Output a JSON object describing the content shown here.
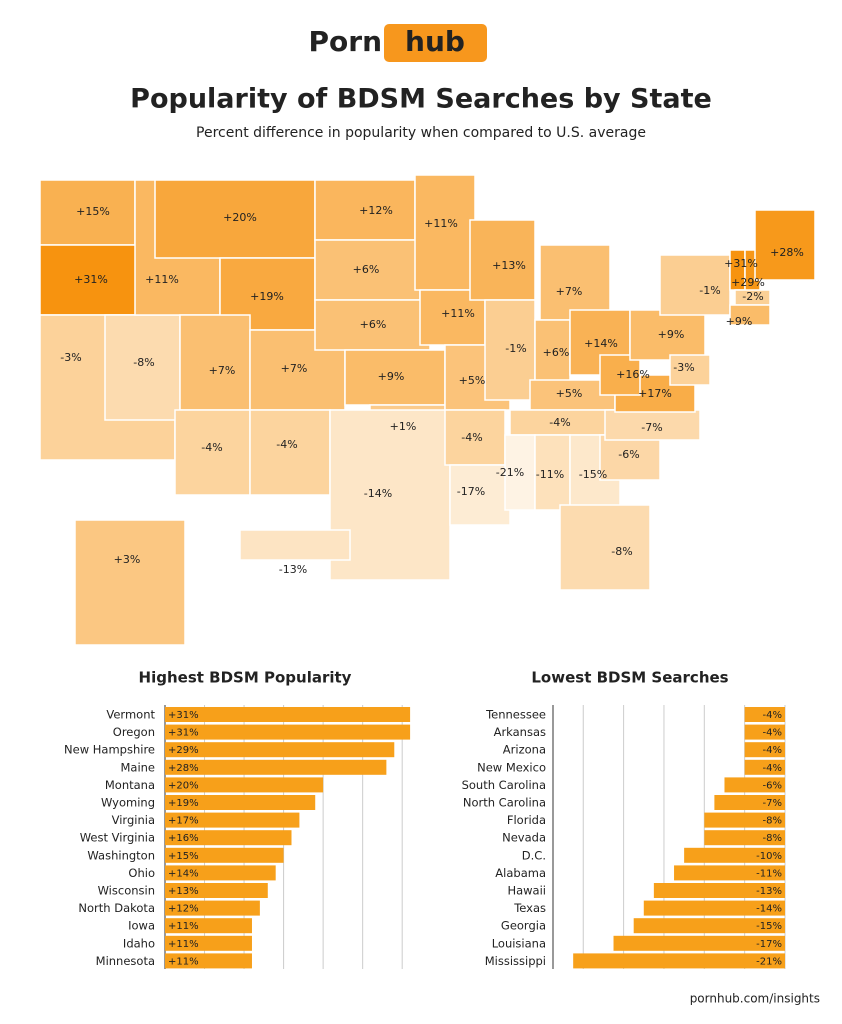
{
  "header": {
    "logo_left": "Porn",
    "logo_right": "hub",
    "title": "Popularity of BDSM Searches by State",
    "subtitle": "Percent difference in popularity when compared to U.S. average"
  },
  "chart_data": [
    {
      "type": "map",
      "values": [
        15,
        31,
        -3,
        -8,
        11,
        20,
        19,
        7,
        7,
        -4,
        -4,
        12,
        6,
        6,
        9,
        1,
        -14,
        11,
        11,
        5,
        -4,
        -17,
        13,
        -1,
        7,
        6,
        14,
        5,
        -4,
        -21,
        -11,
        -15,
        -8,
        -6,
        -7,
        17,
        16,
        9,
        -1,
        31,
        29,
        28,
        -2,
        9,
        -3,
        3,
        -13
      ],
      "value_labels": [
        "+15%",
        "+31%",
        "-3%",
        "-8%",
        "+11%",
        "+20%",
        "+19%",
        "+7%",
        "+7%",
        "-4%",
        "-4%",
        "+12%",
        "+6%",
        "+6%",
        "+9%",
        "+1%",
        "-14%",
        "+11%",
        "+11%",
        "+5%",
        "-4%",
        "-17%",
        "+13%",
        "-1%",
        "+7%",
        "+6%",
        "+14%",
        "+5%",
        "-4%",
        "-21%",
        "-11%",
        "-15%",
        "-8%",
        "-6%",
        "-7%",
        "+17%",
        "+16%",
        "+9%",
        "-1%",
        "+31%",
        "+29%",
        "+28%",
        "-2%",
        "+9%",
        "-3%",
        "+3%",
        "-13%"
      ],
      "color_low": "#fef3e4",
      "color_high": "#f7930f"
    },
    {
      "type": "bar",
      "title": "Highest BDSM Popularity",
      "categories": [
        "Vermont",
        "Oregon",
        "New Hampshire",
        "Maine",
        "Montana",
        "Wyoming",
        "Virginia",
        "West Virginia",
        "Washington",
        "Ohio",
        "Wisconsin",
        "North Dakota",
        "Iowa",
        "Idaho",
        "Minnesota"
      ],
      "values": [
        31,
        31,
        29,
        28,
        20,
        19,
        17,
        16,
        15,
        14,
        13,
        12,
        11,
        11,
        11
      ],
      "value_labels": [
        "+31%",
        "+31%",
        "+29%",
        "+28%",
        "+20%",
        "+19%",
        "+17%",
        "+16%",
        "+15%",
        "+14%",
        "+13%",
        "+12%",
        "+11%",
        "+11%",
        "+11%"
      ],
      "color": "#f7a01a",
      "xlim": [
        0,
        32
      ],
      "xticks": [
        0,
        5,
        10,
        15,
        20,
        25,
        30
      ],
      "grid": true
    },
    {
      "type": "bar",
      "title": "Lowest BDSM Searches",
      "categories": [
        "Tennessee",
        "Arkansas",
        "Arizona",
        "New Mexico",
        "South Carolina",
        "North Carolina",
        "Florida",
        "Nevada",
        "D.C.",
        "Alabama",
        "Hawaii",
        "Texas",
        "Georgia",
        "Louisiana",
        "Mississippi"
      ],
      "values": [
        -4,
        -4,
        -4,
        -4,
        -6,
        -7,
        -8,
        -8,
        -10,
        -11,
        -13,
        -14,
        -15,
        -17,
        -21
      ],
      "value_labels": [
        "-4%",
        "-4%",
        "-4%",
        "-4%",
        "-6%",
        "-7%",
        "-8%",
        "-8%",
        "-10%",
        "-11%",
        "-13%",
        "-14%",
        "-15%",
        "-17%",
        "-21%"
      ],
      "color": "#f7a01a",
      "xlim": [
        -23,
        0
      ],
      "xticks": [
        -20,
        -16,
        -12,
        -8,
        -4,
        0
      ],
      "grid": true
    }
  ],
  "footer": "pornhub.com/insights"
}
